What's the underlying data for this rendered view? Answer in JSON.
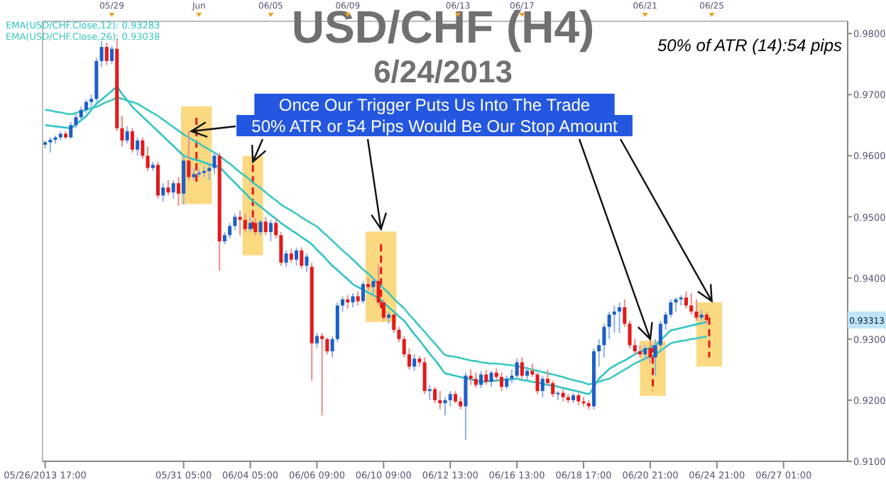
{
  "chart_data": {
    "type": "candlestick",
    "title": "USD/CHF (H4)",
    "subtitle": "6/24/2013",
    "categories": [
      "05/26/2013 17:00",
      null,
      null,
      null,
      null,
      null,
      null,
      null,
      null,
      null,
      null,
      null,
      null,
      null,
      null,
      null,
      null,
      null,
      null,
      null,
      null,
      null,
      null,
      null,
      null,
      null,
      null,
      "05/31 05:00",
      null,
      null,
      null,
      null,
      null,
      null,
      null,
      null,
      null,
      null,
      null,
      null,
      "06/04 05:00",
      null,
      null,
      null,
      null,
      null,
      null,
      null,
      null,
      null,
      null,
      null,
      null,
      "06/06 09:00",
      null,
      null,
      null,
      null,
      null,
      null,
      null,
      null,
      null,
      null,
      null,
      null,
      "06/10 09:00",
      null,
      null,
      null,
      null,
      null,
      null,
      null,
      null,
      null,
      null,
      null,
      null,
      "06/12 13:00",
      null,
      null,
      null,
      null,
      null,
      null,
      null,
      null,
      null,
      null,
      null,
      null,
      "06/16 13:00",
      null,
      null,
      null,
      null,
      null,
      null,
      null,
      null,
      null,
      null,
      null,
      null,
      "06/18 17:00",
      null,
      null,
      null,
      null,
      null,
      null,
      null,
      null,
      null,
      null,
      null,
      null,
      "06/20 21:00",
      null,
      null,
      null,
      null,
      null,
      null,
      null,
      null,
      null,
      null,
      null,
      null,
      "06/24 21:00",
      null,
      null,
      null,
      null,
      null,
      null,
      null,
      null,
      null,
      null,
      null,
      null,
      "06/27 01:00",
      null,
      null,
      null,
      null,
      null,
      null,
      null,
      null,
      null,
      null,
      null,
      null
    ],
    "ohlc": [
      [
        0.9618,
        0.9625,
        0.9612,
        0.9622
      ],
      [
        0.9622,
        0.963,
        0.9605,
        0.9626
      ],
      [
        0.9626,
        0.9633,
        0.962,
        0.963
      ],
      [
        0.963,
        0.964,
        0.9625,
        0.9636
      ],
      [
        0.9636,
        0.964,
        0.9628,
        0.963
      ],
      [
        0.963,
        0.9655,
        0.9628,
        0.965
      ],
      [
        0.965,
        0.9668,
        0.9645,
        0.9663
      ],
      [
        0.9663,
        0.968,
        0.9658,
        0.9675
      ],
      [
        0.9675,
        0.9692,
        0.967,
        0.9688
      ],
      [
        0.9688,
        0.97,
        0.968,
        0.9693
      ],
      [
        0.9693,
        0.976,
        0.9688,
        0.9755
      ],
      [
        0.9755,
        0.9788,
        0.9745,
        0.9778
      ],
      [
        0.9778,
        0.9785,
        0.9748,
        0.9755
      ],
      [
        0.9755,
        0.978,
        0.975,
        0.9775
      ],
      [
        0.9775,
        0.9792,
        0.964,
        0.9645
      ],
      [
        0.9645,
        0.9665,
        0.9615,
        0.9625
      ],
      [
        0.9625,
        0.9648,
        0.962,
        0.964
      ],
      [
        0.964,
        0.9645,
        0.9605,
        0.961
      ],
      [
        0.961,
        0.963,
        0.96,
        0.9625
      ],
      [
        0.9625,
        0.963,
        0.9595,
        0.96
      ],
      [
        0.96,
        0.9615,
        0.9575,
        0.958
      ],
      [
        0.958,
        0.959,
        0.9575,
        0.9585
      ],
      [
        0.9585,
        0.959,
        0.953,
        0.9535
      ],
      [
        0.9535,
        0.9555,
        0.9525,
        0.9548
      ],
      [
        0.9548,
        0.956,
        0.9535,
        0.954
      ],
      [
        0.954,
        0.956,
        0.953,
        0.9555
      ],
      [
        0.9555,
        0.9565,
        0.9518,
        0.9538
      ],
      [
        0.9538,
        0.96,
        0.952,
        0.9592
      ],
      [
        0.9592,
        0.964,
        0.956,
        0.9565
      ],
      [
        0.9565,
        0.958,
        0.956,
        0.957
      ],
      [
        0.957,
        0.9578,
        0.9565,
        0.9572
      ],
      [
        0.9572,
        0.9582,
        0.9565,
        0.9575
      ],
      [
        0.9575,
        0.9585,
        0.956,
        0.958
      ],
      [
        0.958,
        0.9605,
        0.957,
        0.96
      ],
      [
        0.96,
        0.9605,
        0.9412,
        0.946
      ],
      [
        0.946,
        0.9475,
        0.9455,
        0.947
      ],
      [
        0.947,
        0.949,
        0.9465,
        0.9485
      ],
      [
        0.9485,
        0.9505,
        0.9478,
        0.95
      ],
      [
        0.95,
        0.951,
        0.947,
        0.9495
      ],
      [
        0.9495,
        0.9505,
        0.9475,
        0.948
      ],
      [
        0.948,
        0.95,
        0.9475,
        0.949
      ],
      [
        0.949,
        0.9498,
        0.947,
        0.9475
      ],
      [
        0.9475,
        0.9495,
        0.947,
        0.9492
      ],
      [
        0.9492,
        0.95,
        0.947,
        0.9475
      ],
      [
        0.9475,
        0.9495,
        0.946,
        0.949
      ],
      [
        0.949,
        0.9498,
        0.9465,
        0.947
      ],
      [
        0.947,
        0.9475,
        0.942,
        0.9425
      ],
      [
        0.9425,
        0.9445,
        0.9418,
        0.944
      ],
      [
        0.944,
        0.9448,
        0.9425,
        0.943
      ],
      [
        0.943,
        0.945,
        0.942,
        0.9445
      ],
      [
        0.9445,
        0.945,
        0.9415,
        0.942
      ],
      [
        0.942,
        0.944,
        0.941,
        0.9435
      ],
      [
        0.9418,
        0.9425,
        0.9232,
        0.9293
      ],
      [
        0.9293,
        0.931,
        0.9285,
        0.9305
      ],
      [
        0.9305,
        0.931,
        0.9175,
        0.93
      ],
      [
        0.93,
        0.9302,
        0.9275,
        0.928
      ],
      [
        0.928,
        0.9305,
        0.927,
        0.93
      ],
      [
        0.93,
        0.936,
        0.9295,
        0.9355
      ],
      [
        0.9355,
        0.937,
        0.9345,
        0.9365
      ],
      [
        0.9365,
        0.9372,
        0.935,
        0.936
      ],
      [
        0.936,
        0.9375,
        0.9352,
        0.937
      ],
      [
        0.937,
        0.9378,
        0.9355,
        0.9362
      ],
      [
        0.9362,
        0.9395,
        0.9358,
        0.939
      ],
      [
        0.939,
        0.94,
        0.938,
        0.9385
      ],
      [
        0.9385,
        0.94,
        0.937,
        0.9395
      ],
      [
        0.9395,
        0.9422,
        0.9355,
        0.936
      ],
      [
        0.936,
        0.9365,
        0.933,
        0.9335
      ],
      [
        0.9335,
        0.9345,
        0.9325,
        0.934
      ],
      [
        0.934,
        0.9342,
        0.931,
        0.9315
      ],
      [
        0.9315,
        0.932,
        0.9295,
        0.93
      ],
      [
        0.93,
        0.9305,
        0.927,
        0.9275
      ],
      [
        0.9275,
        0.9285,
        0.925,
        0.9255
      ],
      [
        0.9255,
        0.9275,
        0.9248,
        0.9268
      ],
      [
        0.9268,
        0.9272,
        0.9255,
        0.9262
      ],
      [
        0.9262,
        0.927,
        0.921,
        0.9215
      ],
      [
        0.9215,
        0.9225,
        0.92,
        0.9218
      ],
      [
        0.9218,
        0.9222,
        0.9195,
        0.92
      ],
      [
        0.92,
        0.9215,
        0.9185,
        0.9195
      ],
      [
        0.9195,
        0.9205,
        0.9175,
        0.92
      ],
      [
        0.92,
        0.9215,
        0.919,
        0.921
      ],
      [
        0.921,
        0.9215,
        0.9195,
        0.9198
      ],
      [
        0.9198,
        0.9205,
        0.9185,
        0.919
      ],
      [
        0.919,
        0.9245,
        0.9135,
        0.924
      ],
      [
        0.924,
        0.925,
        0.9225,
        0.9235
      ],
      [
        0.9235,
        0.9245,
        0.922,
        0.9225
      ],
      [
        0.9225,
        0.9248,
        0.922,
        0.9242
      ],
      [
        0.9242,
        0.925,
        0.9225,
        0.923
      ],
      [
        0.923,
        0.9248,
        0.9222,
        0.9245
      ],
      [
        0.9245,
        0.9252,
        0.923,
        0.9238
      ],
      [
        0.9238,
        0.9245,
        0.9215,
        0.9222
      ],
      [
        0.9222,
        0.924,
        0.9218,
        0.9235
      ],
      [
        0.9235,
        0.925,
        0.9228,
        0.924
      ],
      [
        0.924,
        0.9268,
        0.9235,
        0.9262
      ],
      [
        0.9262,
        0.927,
        0.9235,
        0.924
      ],
      [
        0.924,
        0.9255,
        0.9232,
        0.9248
      ],
      [
        0.9248,
        0.926,
        0.9238,
        0.9242
      ],
      [
        0.9242,
        0.9245,
        0.921,
        0.9215
      ],
      [
        0.9215,
        0.924,
        0.9205,
        0.9235
      ],
      [
        0.9235,
        0.925,
        0.9225,
        0.9228
      ],
      [
        0.9228,
        0.9232,
        0.9205,
        0.921
      ],
      [
        0.921,
        0.9215,
        0.92,
        0.9212
      ],
      [
        0.9212,
        0.9218,
        0.9198,
        0.9205
      ],
      [
        0.9205,
        0.921,
        0.9195,
        0.92
      ],
      [
        0.92,
        0.9212,
        0.9195,
        0.9208
      ],
      [
        0.9208,
        0.9212,
        0.9192,
        0.9198
      ],
      [
        0.9198,
        0.9205,
        0.919,
        0.9195
      ],
      [
        0.9195,
        0.92,
        0.9185,
        0.919
      ],
      [
        0.919,
        0.9285,
        0.9185,
        0.928
      ],
      [
        0.928,
        0.93,
        0.9255,
        0.929
      ],
      [
        0.929,
        0.9325,
        0.927,
        0.932
      ],
      [
        0.932,
        0.9345,
        0.93,
        0.934
      ],
      [
        0.934,
        0.9355,
        0.931,
        0.9345
      ],
      [
        0.9345,
        0.936,
        0.931,
        0.9352
      ],
      [
        0.9352,
        0.9365,
        0.932,
        0.9325
      ],
      [
        0.9325,
        0.933,
        0.9285,
        0.929
      ],
      [
        0.929,
        0.93,
        0.9275,
        0.928
      ],
      [
        0.928,
        0.929,
        0.927,
        0.9275
      ],
      [
        0.9275,
        0.929,
        0.9265,
        0.9285
      ],
      [
        0.9285,
        0.93,
        0.926,
        0.927
      ],
      [
        0.927,
        0.93,
        0.924,
        0.929
      ],
      [
        0.929,
        0.933,
        0.9285,
        0.9325
      ],
      [
        0.9325,
        0.9345,
        0.9315,
        0.934
      ],
      [
        0.934,
        0.9365,
        0.9335,
        0.936
      ],
      [
        0.936,
        0.9368,
        0.9345,
        0.9365
      ],
      [
        0.9365,
        0.9372,
        0.9355,
        0.9368
      ],
      [
        0.9368,
        0.9378,
        0.935,
        0.9355
      ],
      [
        0.9355,
        0.9375,
        0.934,
        0.9345
      ],
      [
        0.9345,
        0.9365,
        0.933,
        0.9335
      ],
      [
        0.9335,
        0.9348,
        0.933,
        0.934
      ],
      [
        0.934,
        0.9345,
        0.9325,
        0.9331
      ],
      null,
      null,
      null,
      null,
      null,
      null,
      null,
      null,
      null,
      null,
      null,
      null,
      null,
      null,
      null,
      null,
      null,
      null,
      null,
      null,
      null,
      null,
      null,
      null,
      null,
      null,
      null
    ],
    "series": [
      {
        "type": "line",
        "name": "EMA(USD/CHF.Close,12): 0.93283",
        "color": "#2ec4c4",
        "values": [
          0.965,
          0.9649,
          0.9648,
          0.9647,
          0.9646,
          0.9645,
          0.9652,
          0.9658,
          0.9665,
          0.9675,
          0.9685,
          0.9692,
          0.9699,
          0.9706,
          0.9712,
          0.9701,
          0.9691,
          0.968,
          0.9672,
          0.9664,
          0.9656,
          0.9648,
          0.964,
          0.9632,
          0.9624,
          0.9616,
          0.9608,
          0.96,
          0.9597,
          0.9594,
          0.9592,
          0.9589,
          0.9586,
          0.9584,
          0.9581,
          0.9573,
          0.9564,
          0.9556,
          0.9547,
          0.9539,
          0.953,
          0.9523,
          0.9517,
          0.951,
          0.9503,
          0.9497,
          0.949,
          0.9484,
          0.9478,
          0.9473,
          0.9467,
          0.9461,
          0.9455,
          0.9446,
          0.9438,
          0.9429,
          0.942,
          0.9413,
          0.9405,
          0.9398,
          0.939,
          0.9385,
          0.9381,
          0.9376,
          0.9372,
          0.9367,
          0.936,
          0.9352,
          0.9345,
          0.9337,
          0.933,
          0.9319,
          0.9308,
          0.9298,
          0.9287,
          0.9276,
          0.9266,
          0.9255,
          0.9244,
          0.9242,
          0.924,
          0.9238,
          0.9236,
          0.9234,
          0.9232,
          0.923,
          0.9231,
          0.9232,
          0.9232,
          0.9233,
          0.9234,
          0.9234,
          0.9235,
          0.9233,
          0.9232,
          0.923,
          0.9229,
          0.9227,
          0.9225,
          0.9224,
          0.9222,
          0.922,
          0.9218,
          0.9216,
          0.9214,
          0.9212,
          0.921,
          0.9222,
          0.9235,
          0.9243,
          0.9251,
          0.9256,
          0.9261,
          0.9265,
          0.927,
          0.9275,
          0.9279,
          0.9283,
          0.9286,
          0.929,
          0.9298,
          0.9306,
          0.9314,
          0.9316,
          0.9318,
          0.932,
          0.9322,
          0.9324,
          0.9326,
          0.9328,
          null,
          null,
          null,
          null,
          null,
          null,
          null,
          null,
          null,
          null,
          null,
          null,
          null,
          null,
          null,
          null,
          null,
          null,
          null,
          null,
          null,
          null,
          null,
          null,
          null,
          null,
          null
        ]
      },
      {
        "type": "line",
        "name": "EMA(USD/CHF.Close,26): 0.93038",
        "color": "#3cc8c0",
        "values": [
          0.9675,
          0.9674,
          0.9672,
          0.9671,
          0.9669,
          0.9668,
          0.967,
          0.9673,
          0.9675,
          0.9678,
          0.968,
          0.9684,
          0.9688,
          0.9691,
          0.9695,
          0.9693,
          0.969,
          0.9688,
          0.9685,
          0.968,
          0.9675,
          0.967,
          0.9665,
          0.9659,
          0.9653,
          0.9647,
          0.9641,
          0.9635,
          0.963,
          0.9625,
          0.962,
          0.9615,
          0.961,
          0.9605,
          0.96,
          0.9593,
          0.9587,
          0.958,
          0.9573,
          0.9567,
          0.956,
          0.9553,
          0.9547,
          0.954,
          0.9533,
          0.9527,
          0.952,
          0.9515,
          0.951,
          0.9505,
          0.9499,
          0.9494,
          0.9489,
          0.9484,
          0.9476,
          0.9469,
          0.9461,
          0.9453,
          0.9445,
          0.9438,
          0.943,
          0.9422,
          0.9414,
          0.9407,
          0.9399,
          0.9391,
          0.9383,
          0.9375,
          0.9366,
          0.9358,
          0.935,
          0.934,
          0.9331,
          0.9321,
          0.9312,
          0.9302,
          0.9293,
          0.9283,
          0.9274,
          0.9272,
          0.9271,
          0.9269,
          0.9267,
          0.9265,
          0.9264,
          0.9262,
          0.9261,
          0.926,
          0.926,
          0.9259,
          0.9258,
          0.9257,
          0.9256,
          0.9254,
          0.9252,
          0.925,
          0.9248,
          0.9246,
          0.9244,
          0.9242,
          0.924,
          0.9238,
          0.9235,
          0.9233,
          0.9231,
          0.9229,
          0.9226,
          0.9228,
          0.923,
          0.9233,
          0.9235,
          0.924,
          0.9245,
          0.925,
          0.9255,
          0.926,
          0.9264,
          0.9268,
          0.9271,
          0.9275,
          0.9281,
          0.9287,
          0.9293,
          0.9295,
          0.9297,
          0.9298,
          0.93,
          0.9301,
          0.9303,
          0.9304,
          null,
          null,
          null,
          null,
          null,
          null,
          null,
          null,
          null,
          null,
          null,
          null,
          null,
          null,
          null,
          null,
          null,
          null,
          null,
          null,
          null,
          null,
          null,
          null,
          null,
          null,
          null
        ]
      }
    ],
    "ylim": [
      0.91,
      0.982
    ],
    "yticks": [
      {
        "value": 0.91,
        "label": "0.9100"
      },
      {
        "value": 0.92,
        "label": "0.9200"
      },
      {
        "value": 0.93,
        "label": "0.9300"
      },
      {
        "value": 0.94,
        "label": "0.9400"
      },
      {
        "value": 0.95,
        "label": "0.9500"
      },
      {
        "value": 0.96,
        "label": "0.9600"
      },
      {
        "value": 0.97,
        "label": "0.9700"
      },
      {
        "value": 0.98,
        "label": "0.9800"
      }
    ],
    "legend": "top left",
    "grid": false,
    "annotations": [
      {
        "text": "Once Our Trigger Puts Us Into The Trade\n50% ATR or 54 Pips Would Be Our Stop Amount",
        "x": "06/20 21:00",
        "y": 0.93
      },
      "50% of ATR (14):54 pips",
      {
        "text": "0.93313",
        "y": 0.93313
      },
      "05/29",
      "Jun",
      "06/05",
      "06/09",
      "06/13",
      "06/17",
      "06/21",
      "06/25"
    ]
  }
}
